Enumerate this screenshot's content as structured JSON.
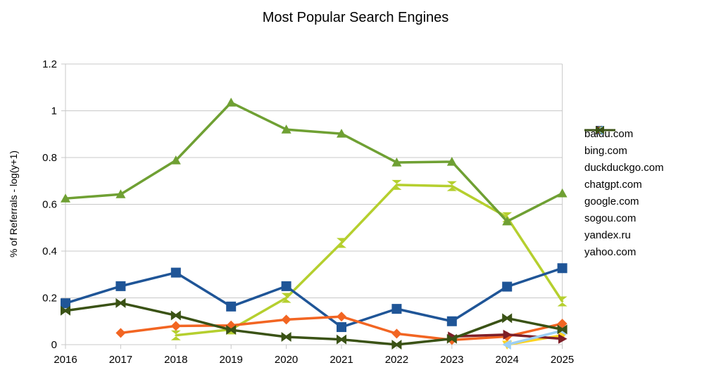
{
  "chart_data": {
    "type": "line",
    "title": "Most Popular Search Engines",
    "xlabel": "",
    "ylabel": "% of Referrals  - log(y+1)",
    "ylim": [
      0,
      1.2
    ],
    "yticks": [
      "0",
      "0.2",
      "0.4",
      "0.6",
      "0.8",
      "1",
      "1.2"
    ],
    "grid": true,
    "legend_position": "right",
    "categories": [
      "2016",
      "2017",
      "2018",
      "2019",
      "2020",
      "2021",
      "2022",
      "2023",
      "2024",
      "2025"
    ],
    "series": [
      {
        "name": "baidu.com",
        "color": "#b5cf2e",
        "marker": "hourglass",
        "values": [
          null,
          null,
          0.04,
          0.065,
          0.2,
          0.435,
          0.683,
          0.678,
          0.545,
          0.185
        ]
      },
      {
        "name": "bing.com",
        "color": "#1f5597",
        "marker": "square",
        "values": [
          0.177,
          0.25,
          0.308,
          0.163,
          0.25,
          0.075,
          0.153,
          0.1,
          0.248,
          0.327
        ]
      },
      {
        "name": "duckduckgo.com",
        "color": "#f26522",
        "marker": "diamond",
        "values": [
          null,
          0.05,
          0.08,
          0.082,
          0.107,
          0.12,
          0.047,
          0.02,
          0.035,
          0.09
        ]
      },
      {
        "name": "chatgpt.com",
        "color": "#ffd320",
        "marker": "triangle-down",
        "values": [
          null,
          null,
          null,
          null,
          null,
          null,
          null,
          null,
          0.0,
          0.04
        ]
      },
      {
        "name": "google.com",
        "color": "#6fa033",
        "marker": "triangle-up",
        "values": [
          0.625,
          0.643,
          0.788,
          1.035,
          0.92,
          0.902,
          0.779,
          0.782,
          0.527,
          0.647
        ]
      },
      {
        "name": "sogou.com",
        "color": "#7e1e27",
        "marker": "triangle-right",
        "values": [
          null,
          null,
          null,
          null,
          null,
          null,
          null,
          0.035,
          0.043,
          0.025
        ]
      },
      {
        "name": "yandex.ru",
        "color": "#9ccff5",
        "marker": "triangle-left",
        "values": [
          null,
          null,
          null,
          null,
          null,
          null,
          null,
          null,
          0.0,
          0.06
        ]
      },
      {
        "name": "yahoo.com",
        "color": "#3a5215",
        "marker": "bowtie",
        "values": [
          0.145,
          0.178,
          0.125,
          0.063,
          0.033,
          0.022,
          0.0,
          0.025,
          0.113,
          0.065
        ]
      }
    ]
  }
}
